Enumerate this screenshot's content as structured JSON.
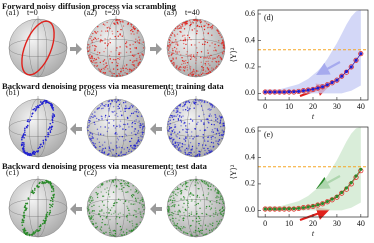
{
  "rows": [
    {
      "title": "Forward noisy diffusion process via scrambling",
      "color": "#e0201b",
      "spheres": [
        {
          "label": "(a1)",
          "time": "t=0"
        },
        {
          "label": "(a2)",
          "time": "t=20"
        },
        {
          "label": "(a3)",
          "time": "t=40"
        }
      ]
    },
    {
      "title": "Backward denoising process via measurement: training data",
      "color": "#2020d0",
      "spheres": [
        {
          "label": "(b1)"
        },
        {
          "label": "(b2)"
        },
        {
          "label": "(b3)"
        }
      ]
    },
    {
      "title": "Backward denoising process via measurement: test data",
      "color": "#2a8a2a",
      "spheres": [
        {
          "label": "(c1)"
        },
        {
          "label": "(c2)"
        },
        {
          "label": "(c3)"
        }
      ]
    }
  ],
  "chart_data": [
    {
      "type": "line",
      "panel": "(d)",
      "y_label": "⟨Y⟩²",
      "x_label": "t",
      "x": [
        0,
        2,
        4,
        6,
        8,
        10,
        12,
        14,
        16,
        18,
        20,
        22,
        24,
        26,
        28,
        30,
        32,
        34,
        36,
        38,
        40
      ],
      "xlim": [
        -3,
        43
      ],
      "xticks": [
        0,
        10,
        20,
        30,
        40
      ],
      "ylim": [
        -0.05,
        0.63
      ],
      "yticks": [
        {
          "value": 0,
          "label": "0.0"
        },
        {
          "value": 0.2,
          "label": "0.2"
        },
        {
          "value": 0.4,
          "label": "0.4"
        },
        {
          "value": 0.6,
          "label": "0.6"
        }
      ],
      "hline": 0.33,
      "hline_color": "#f5a623",
      "bands": [
        {
          "color": "#c8cdf5",
          "upper": [
            0.03,
            0.03,
            0.03,
            0.03,
            0.04,
            0.05,
            0.06,
            0.07,
            0.09,
            0.11,
            0.14,
            0.17,
            0.21,
            0.26,
            0.32,
            0.38,
            0.45,
            0.52,
            0.58,
            0.62,
            0.63
          ],
          "lower": [
            0,
            0,
            0,
            0,
            0,
            0,
            0,
            0,
            0,
            0,
            0,
            0,
            0,
            0,
            0,
            0,
            0,
            0.01,
            0.02,
            0.04,
            0.06
          ]
        }
      ],
      "series": [
        {
          "color": "#e0201b",
          "marker": "open",
          "values": [
            0.01,
            0.01,
            0.01,
            0.01,
            0.01,
            0.01,
            0.01,
            0.015,
            0.02,
            0.025,
            0.03,
            0.04,
            0.05,
            0.065,
            0.08,
            0.1,
            0.13,
            0.16,
            0.2,
            0.25,
            0.3
          ]
        },
        {
          "color": "#2020d0",
          "marker": "filled",
          "values": [
            0.01,
            0.01,
            0.01,
            0.01,
            0.01,
            0.012,
            0.012,
            0.015,
            0.02,
            0.025,
            0.032,
            0.04,
            0.05,
            0.065,
            0.082,
            0.1,
            0.13,
            0.165,
            0.2,
            0.25,
            0.3
          ]
        }
      ]
    },
    {
      "type": "line",
      "panel": "(e)",
      "y_label": "⟨Y⟩²",
      "x_label": "t",
      "x": [
        0,
        2,
        4,
        6,
        8,
        10,
        12,
        14,
        16,
        18,
        20,
        22,
        24,
        26,
        28,
        30,
        32,
        34,
        36,
        38,
        40
      ],
      "xlim": [
        -3,
        43
      ],
      "xticks": [
        0,
        10,
        20,
        30,
        40
      ],
      "ylim": [
        -0.05,
        0.63
      ],
      "yticks": [
        {
          "value": 0,
          "label": "0.0"
        },
        {
          "value": 0.2,
          "label": "0.2"
        },
        {
          "value": 0.4,
          "label": "0.4"
        },
        {
          "value": 0.6,
          "label": "0.6"
        }
      ],
      "hline": 0.33,
      "hline_color": "#f5a623",
      "bands": [
        {
          "color": "#cfe8cf",
          "upper": [
            0.03,
            0.03,
            0.03,
            0.03,
            0.04,
            0.05,
            0.06,
            0.07,
            0.09,
            0.11,
            0.14,
            0.17,
            0.21,
            0.26,
            0.32,
            0.38,
            0.45,
            0.52,
            0.58,
            0.62,
            0.63
          ],
          "lower": [
            0,
            0,
            0,
            0,
            0,
            0,
            0,
            0,
            0,
            0,
            0,
            0,
            0,
            0,
            0,
            0,
            0,
            0.01,
            0.02,
            0.04,
            0.06
          ]
        }
      ],
      "series": [
        {
          "color": "#e0201b",
          "marker": "open",
          "values": [
            0.01,
            0.01,
            0.01,
            0.01,
            0.01,
            0.01,
            0.01,
            0.015,
            0.02,
            0.025,
            0.03,
            0.04,
            0.05,
            0.065,
            0.08,
            0.1,
            0.13,
            0.16,
            0.2,
            0.25,
            0.3
          ]
        },
        {
          "color": "#2a8a2a",
          "marker": "filled",
          "values": [
            0.01,
            0.01,
            0.01,
            0.01,
            0.012,
            0.012,
            0.013,
            0.016,
            0.02,
            0.026,
            0.033,
            0.042,
            0.052,
            0.067,
            0.085,
            0.105,
            0.135,
            0.17,
            0.21,
            0.26,
            0.31
          ]
        }
      ]
    }
  ]
}
